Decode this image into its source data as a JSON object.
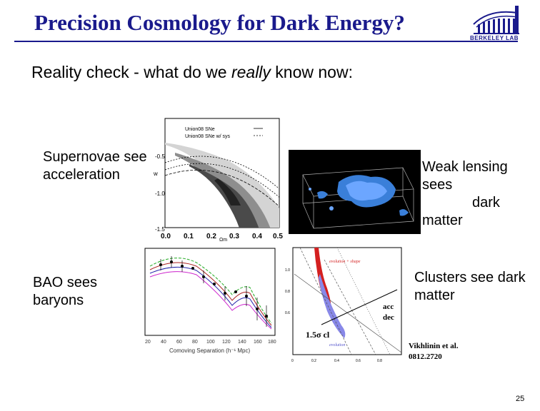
{
  "slide": {
    "title": "Precision Cosmology for Dark Energy?",
    "logo_text": "BERKELEY LAB",
    "subtitle": {
      "prefix": "Reality check - what do we ",
      "emphasis": "really",
      "suffix": " know now:"
    },
    "labels": {
      "supernovae": "Supernovae see acceleration",
      "weak_lensing": [
        "Weak lensing",
        "sees",
        "dark",
        "matter"
      ],
      "bao": "BAO sees baryons",
      "clusters": "Clusters see dark matter"
    },
    "sn_plot": {
      "legend": [
        "Union08 SNe",
        "Union08 SNe w/ sys"
      ],
      "ylabel": "w",
      "xlabel": "Ωm",
      "xticks": [
        "0.0",
        "0.1",
        "0.2",
        "0.3",
        "0.4",
        "0.5"
      ],
      "yticks": [
        "-0.5",
        "-1.0",
        "-1.5"
      ]
    },
    "bao_plot": {
      "xlabel": "Comoving Separation (h⁻¹ Mpc)",
      "xticks": [
        "20",
        "40",
        "60",
        "80",
        "100",
        "120",
        "140",
        "160",
        "180"
      ]
    },
    "cluster_plot": {
      "legend_top": "evolution + shape",
      "legend_bottom": "evolution",
      "annotation_acc": "acc",
      "annotation_dec": "dec",
      "annotation_cl": "1.5σ cl",
      "xticks": [
        "0",
        "0.2",
        "0.4",
        "0.6",
        "0.8"
      ],
      "yticks": [
        "0.6",
        "0.8",
        "1.0"
      ]
    },
    "citation": [
      "Vikhlinin et al.",
      "0812.2720"
    ],
    "page_number": "25"
  }
}
